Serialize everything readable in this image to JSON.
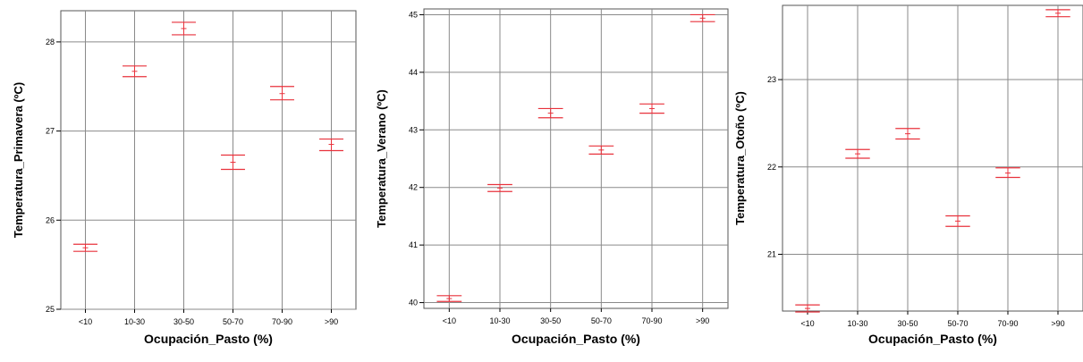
{
  "chart_data": [
    {
      "type": "errorbar",
      "title": "",
      "xlabel": "Ocupación_Pasto (%)",
      "ylabel": "Temperatura_Primavera (ºC)",
      "categories": [
        "<10",
        "10-30",
        "30-50",
        "50-70",
        "70-90",
        ">90"
      ],
      "ylim": [
        25,
        28.35
      ],
      "yticks": [
        "25",
        "26",
        "27",
        "28"
      ],
      "grid": true,
      "series": [
        {
          "mean": [
            25.69,
            27.67,
            28.15,
            26.65,
            27.42,
            26.85
          ],
          "lower": [
            25.65,
            27.61,
            28.08,
            26.57,
            27.35,
            26.78
          ],
          "upper": [
            25.73,
            27.73,
            28.22,
            26.73,
            27.5,
            26.91
          ]
        }
      ]
    },
    {
      "type": "errorbar",
      "title": "",
      "xlabel": "Ocupación_Pasto (%)",
      "ylabel": "Temperatura_Verano (ºC)",
      "categories": [
        "<10",
        "10-30",
        "30-50",
        "50-70",
        "70-90",
        ">90"
      ],
      "ylim": [
        39.9,
        45.1
      ],
      "yticks": [
        "40",
        "41",
        "42",
        "43",
        "44",
        "45"
      ],
      "grid": true,
      "series": [
        {
          "mean": [
            40.07,
            41.99,
            43.29,
            42.65,
            43.37,
            44.94
          ],
          "lower": [
            40.02,
            41.93,
            43.21,
            42.58,
            43.29,
            44.88
          ],
          "upper": [
            40.12,
            42.05,
            43.37,
            42.72,
            43.45,
            45.0
          ]
        }
      ]
    },
    {
      "type": "errorbar",
      "title": "",
      "xlabel": "Ocupación_Pasto (%)",
      "ylabel": "Temperatura_Otoño (ºC)",
      "categories": [
        "<10",
        "10-30",
        "30-50",
        "50-70",
        "70-90",
        ">90"
      ],
      "ylim": [
        20.35,
        23.85
      ],
      "yticks": [
        "21",
        "22",
        "23"
      ],
      "grid": true,
      "series": [
        {
          "mean": [
            20.38,
            22.15,
            22.38,
            21.38,
            21.93,
            23.76
          ],
          "lower": [
            20.34,
            22.1,
            22.32,
            21.32,
            21.88,
            23.72
          ],
          "upper": [
            20.42,
            22.2,
            22.44,
            21.44,
            21.99,
            23.8
          ]
        }
      ]
    }
  ]
}
